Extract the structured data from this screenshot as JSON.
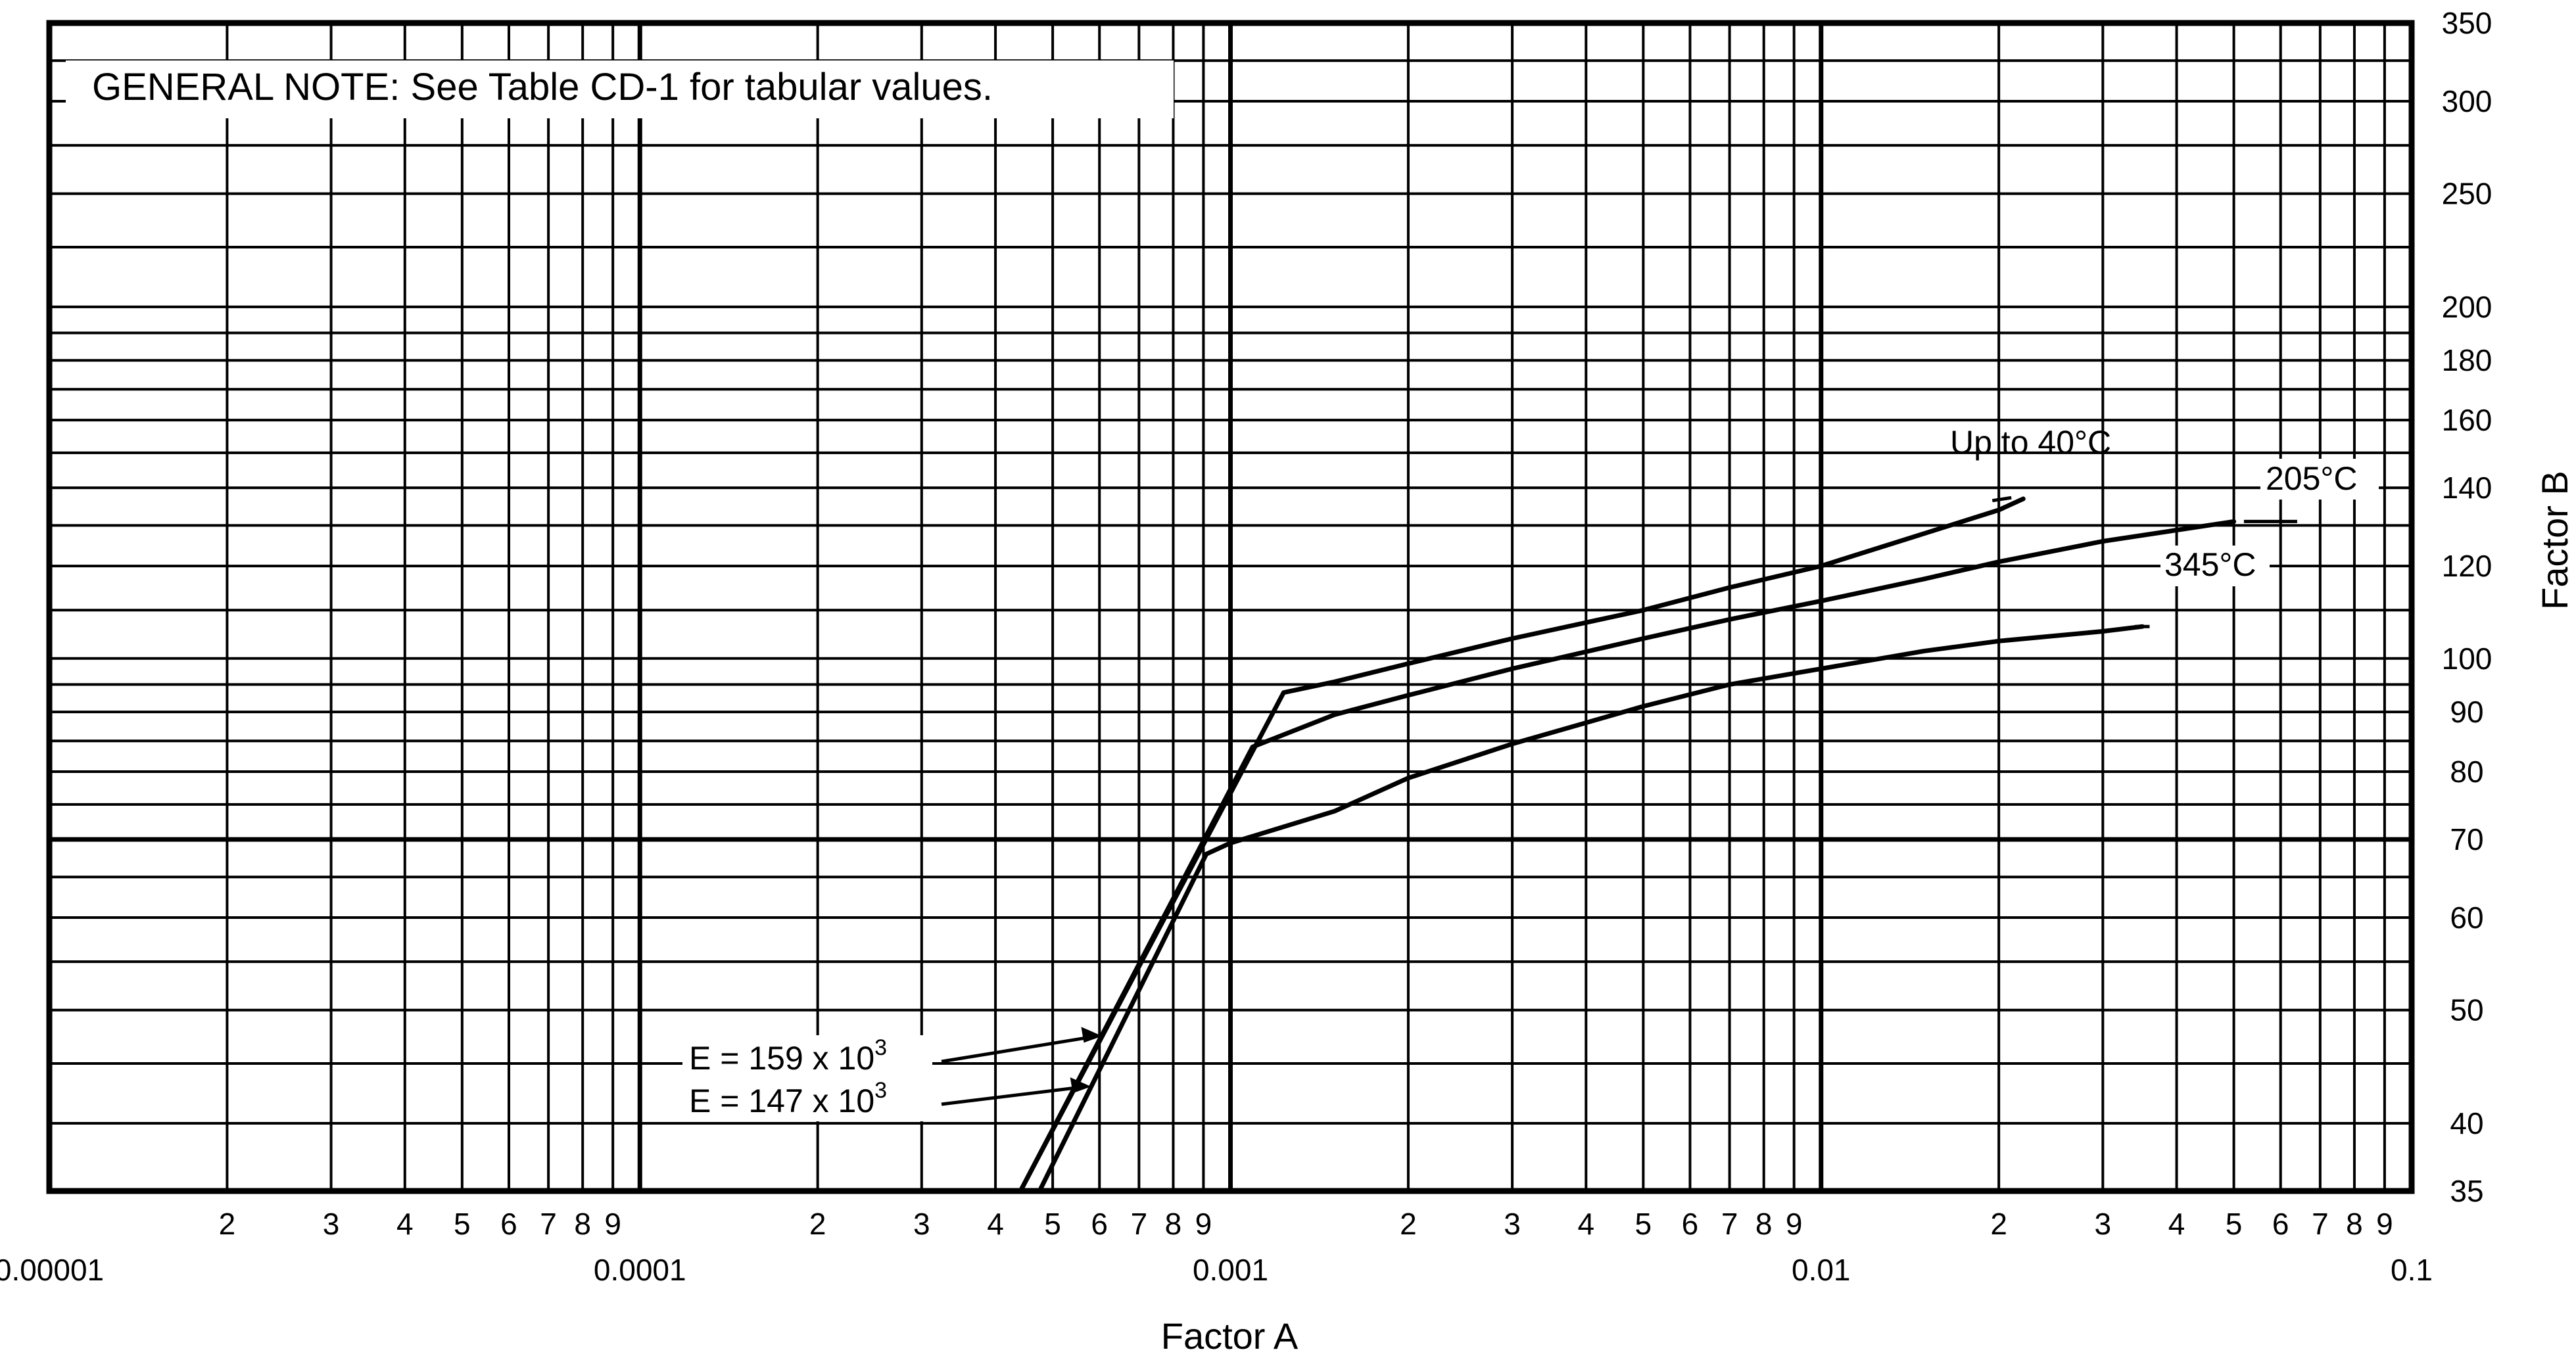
{
  "chart_data": {
    "type": "line",
    "xscale": "log",
    "yscale": "log",
    "xlim": [
      1e-05,
      0.1
    ],
    "ylim": [
      35,
      350
    ],
    "grid": true,
    "xlabel": "Factor A",
    "ylabel": "Factor B",
    "note": "GENERAL NOTE: See Table CD-1 for tabular values.",
    "x_decade_labels": [
      "0.00001",
      "0.0001",
      "0.001",
      "0.01",
      "0.1"
    ],
    "x_minor_labels": [
      "2",
      "3",
      "4",
      "5",
      "6",
      "7",
      "8",
      "9"
    ],
    "y_tick_values": [
      35,
      40,
      50,
      60,
      70,
      80,
      90,
      100,
      120,
      140,
      160,
      180,
      200,
      250,
      300,
      350
    ],
    "y_tick_labels": [
      "35",
      "40",
      "50",
      "60",
      "70",
      "80",
      "90",
      "100",
      "120",
      "140",
      "160",
      "180",
      "200",
      "250",
      "300",
      "350"
    ],
    "series": [
      {
        "name": "Up to 40°C",
        "x": [
          0.000441,
          0.00123,
          0.0015,
          0.002,
          0.003,
          0.005,
          0.007,
          0.01,
          0.015,
          0.02,
          0.022
        ],
        "y": [
          35,
          93.5,
          95.5,
          99,
          104,
          110,
          115,
          120,
          128,
          134,
          137
        ]
      },
      {
        "name": "205°C",
        "x": [
          0.000441,
          0.00109,
          0.0015,
          0.002,
          0.003,
          0.005,
          0.007,
          0.01,
          0.015,
          0.02,
          0.03,
          0.05
        ],
        "y": [
          35,
          84,
          89.5,
          93,
          98,
          104,
          108,
          112,
          117,
          121,
          126,
          131
        ]
      },
      {
        "name": "345°C",
        "x": [
          0.000475,
          0.00091,
          0.001,
          0.0015,
          0.002,
          0.003,
          0.005,
          0.007,
          0.01,
          0.015,
          0.02,
          0.03,
          0.035
        ],
        "y": [
          35,
          68,
          69.5,
          74,
          79,
          84.5,
          91,
          95,
          98,
          101.5,
          103.5,
          105.5,
          106.5
        ]
      }
    ],
    "modulus_lines": [
      {
        "label": "E = 159 x 10",
        "exponent": "3",
        "x": [
          0.000441,
          0.00123
        ],
        "y": [
          35,
          97.3
        ]
      },
      {
        "label": "E = 147 x 10",
        "exponent": "3",
        "x": [
          0.000475,
          0.00091
        ],
        "y": [
          35,
          67
        ]
      }
    ]
  }
}
